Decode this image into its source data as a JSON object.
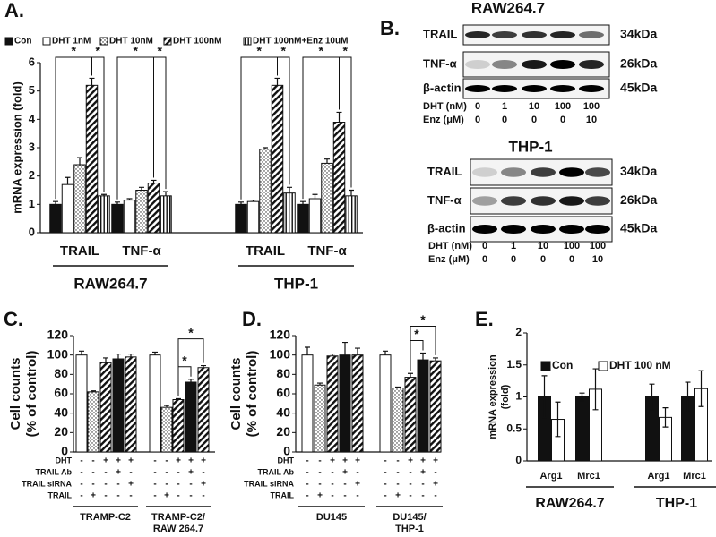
{
  "chart_data": [
    {
      "type": "grouped_bar",
      "label": "A.",
      "ylabel": [
        "mRNA expression (fold)"
      ],
      "ylim": [
        0,
        6
      ],
      "yticks": [
        0,
        1,
        2,
        3,
        4,
        5,
        6
      ],
      "error_direction": "up",
      "categories": [
        "TRAIL",
        "TNF-α",
        "TRAIL",
        "TNF-α"
      ],
      "groups": [
        {
          "label": [
            "RAW264.7"
          ],
          "size": 2
        },
        {
          "label": [
            "THP-1"
          ],
          "size": 2
        }
      ],
      "series": [
        {
          "name": "Con",
          "pattern": "solid",
          "values": [
            1.0,
            1.0,
            1.0,
            1.0
          ],
          "errors": [
            0.1,
            0.08,
            0.08,
            0.1
          ]
        },
        {
          "name": "DHT 1nM",
          "pattern": "open",
          "values": [
            1.7,
            1.15,
            1.1,
            1.2
          ],
          "errors": [
            0.25,
            0.05,
            0.05,
            0.15
          ]
        },
        {
          "name": "DHT 10nM",
          "pattern": "dots",
          "values": [
            2.4,
            1.5,
            2.95,
            2.45
          ],
          "errors": [
            0.25,
            0.1,
            0.05,
            0.15
          ]
        },
        {
          "name": "DHT 100nM",
          "pattern": "diagonal",
          "values": [
            5.2,
            1.75,
            5.2,
            3.9
          ],
          "errors": [
            0.25,
            0.1,
            0.25,
            0.35
          ]
        },
        {
          "name": "DHT 100nM+Enz 10uM",
          "pattern": "vertical",
          "values": [
            1.3,
            1.3,
            1.4,
            1.3
          ],
          "errors": [
            0.05,
            0.15,
            0.2,
            0.2
          ]
        }
      ],
      "brackets": [
        {
          "text": "*",
          "category": 0,
          "series": [
            0,
            3
          ]
        },
        {
          "text": "*",
          "category": 0,
          "series": [
            3,
            4
          ]
        },
        {
          "text": "*",
          "category": 1,
          "series": [
            0,
            3
          ]
        },
        {
          "text": "*",
          "category": 1,
          "series": [
            3,
            4
          ]
        },
        {
          "text": "*",
          "category": 2,
          "series": [
            0,
            3
          ]
        },
        {
          "text": "*",
          "category": 2,
          "series": [
            3,
            4
          ]
        },
        {
          "text": "*",
          "category": 3,
          "series": [
            0,
            3
          ]
        },
        {
          "text": "*",
          "category": 3,
          "series": [
            3,
            4
          ]
        }
      ]
    },
    {
      "type": "bar",
      "label": "C.",
      "ylabel": [
        "Cell counts",
        "(% of control)"
      ],
      "ylim": [
        0,
        120
      ],
      "yticks": [
        0,
        20,
        40,
        60,
        80,
        100,
        120
      ],
      "error_direction": "up",
      "values": [
        100,
        62,
        92,
        96,
        98,
        100,
        46,
        54,
        72,
        87
      ],
      "errors": [
        4,
        1,
        5,
        5,
        3,
        3,
        2,
        1,
        3,
        2
      ],
      "patterns": [
        "open",
        "dots",
        "diagonal",
        "solid",
        "diagonal",
        "open",
        "dots",
        "diagonal",
        "solid",
        "diagonal"
      ],
      "treatments": [
        {
          "name": "DHT",
          "marks": [
            "-",
            "-",
            "+",
            "+",
            "+",
            "-",
            "-",
            "+",
            "+",
            "+"
          ]
        },
        {
          "name": "TRAIL Ab",
          "marks": [
            "-",
            "-",
            "-",
            "+",
            "-",
            "-",
            "-",
            "-",
            "+",
            "-"
          ]
        },
        {
          "name": "TRAIL siRNA",
          "marks": [
            "-",
            "-",
            "-",
            "-",
            "+",
            "-",
            "-",
            "-",
            "-",
            "+"
          ]
        },
        {
          "name": "TRAIL",
          "marks": [
            "-",
            "+",
            "-",
            "-",
            "-",
            "-",
            "+",
            "-",
            "-",
            "-"
          ]
        }
      ],
      "groups": [
        {
          "label": [
            "TRAMP-C2"
          ],
          "size": 5
        },
        {
          "label": [
            "TRAMP-C2/",
            "RAW 264.7"
          ],
          "size": 5
        }
      ],
      "brackets": [
        {
          "text": "*",
          "bars": [
            7,
            8
          ]
        },
        {
          "text": "*",
          "bars": [
            7,
            9
          ]
        }
      ]
    },
    {
      "type": "bar",
      "label": "D.",
      "ylabel": [
        "Cell counts",
        "(% of control)"
      ],
      "ylim": [
        0,
        120
      ],
      "yticks": [
        0,
        20,
        40,
        60,
        80,
        100,
        120
      ],
      "error_direction": "up",
      "values": [
        100,
        69,
        99,
        100,
        100,
        100,
        66,
        77,
        95,
        94
      ],
      "errors": [
        8,
        2,
        2,
        13,
        7,
        4,
        1,
        4,
        7,
        3
      ],
      "patterns": [
        "open",
        "dots",
        "diagonal",
        "solid",
        "diagonal",
        "open",
        "dots",
        "diagonal",
        "solid",
        "diagonal"
      ],
      "treatments": [
        {
          "name": "DHT",
          "marks": [
            "-",
            "-",
            "+",
            "+",
            "+",
            "-",
            "-",
            "+",
            "+",
            "+"
          ]
        },
        {
          "name": "TRAIL Ab",
          "marks": [
            "-",
            "-",
            "-",
            "+",
            "-",
            "-",
            "-",
            "-",
            "+",
            "-"
          ]
        },
        {
          "name": "TRAIL siRNA",
          "marks": [
            "-",
            "-",
            "-",
            "-",
            "+",
            "-",
            "-",
            "-",
            "-",
            "+"
          ]
        },
        {
          "name": "TRAIL",
          "marks": [
            "-",
            "+",
            "-",
            "-",
            "-",
            "-",
            "+",
            "-",
            "-",
            "-"
          ]
        }
      ],
      "groups": [
        {
          "label": [
            "DU145"
          ],
          "size": 5
        },
        {
          "label": [
            "DU145/",
            "THP-1"
          ],
          "size": 5
        }
      ],
      "brackets": [
        {
          "text": "*",
          "bars": [
            7,
            8
          ]
        },
        {
          "text": "*",
          "bars": [
            7,
            9
          ]
        }
      ]
    },
    {
      "type": "grouped_bar",
      "label": "E.",
      "ylabel": [
        "mRNA expression",
        "(fold)"
      ],
      "ylim": [
        0,
        2
      ],
      "yticks": [
        0,
        0.5,
        1,
        1.5,
        2
      ],
      "error_direction": "both",
      "categories": [
        "Arg1",
        "Mrc1",
        "Arg1",
        "Mrc1"
      ],
      "groups": [
        {
          "label": [
            "RAW264.7"
          ],
          "size": 2
        },
        {
          "label": [
            "THP-1"
          ],
          "size": 2
        }
      ],
      "series": [
        {
          "name": "Con",
          "pattern": "solid",
          "values": [
            1.0,
            1.0,
            1.0,
            1.0
          ],
          "errors": [
            0.33,
            0.06,
            0.2,
            0.23
          ]
        },
        {
          "name": "DHT 100 nM",
          "pattern": "open",
          "values": [
            0.65,
            1.12,
            0.68,
            1.13
          ],
          "errors": [
            0.27,
            0.32,
            0.15,
            0.28
          ]
        }
      ],
      "brackets": []
    }
  ],
  "blots": {
    "label": "B.",
    "panels": [
      {
        "title": "RAW264.7",
        "bands": [
          {
            "name": "TRAIL",
            "size": "34kDa"
          },
          {
            "name": "TNF-α",
            "size": "26kDa"
          },
          {
            "name": "β-actin",
            "size": "45kDa"
          }
        ],
        "rows": [
          {
            "name": "DHT (nM)",
            "values": [
              "0",
              "1",
              "10",
              "100",
              "100"
            ]
          },
          {
            "name": "Enz (μM)",
            "values": [
              "0",
              "0",
              "0",
              "0",
              "10"
            ]
          }
        ]
      },
      {
        "title": "THP-1",
        "bands": [
          {
            "name": "TRAIL",
            "size": "34kDa"
          },
          {
            "name": "TNF-α",
            "size": "26kDa"
          },
          {
            "name": "β-actin",
            "size": "45kDa"
          }
        ],
        "rows": [
          {
            "name": "DHT (nM)",
            "values": [
              "0",
              "1",
              "10",
              "100",
              "100"
            ]
          },
          {
            "name": "Enz (μM)",
            "values": [
              "0",
              "0",
              "0",
              "0",
              "10"
            ]
          }
        ]
      }
    ]
  }
}
